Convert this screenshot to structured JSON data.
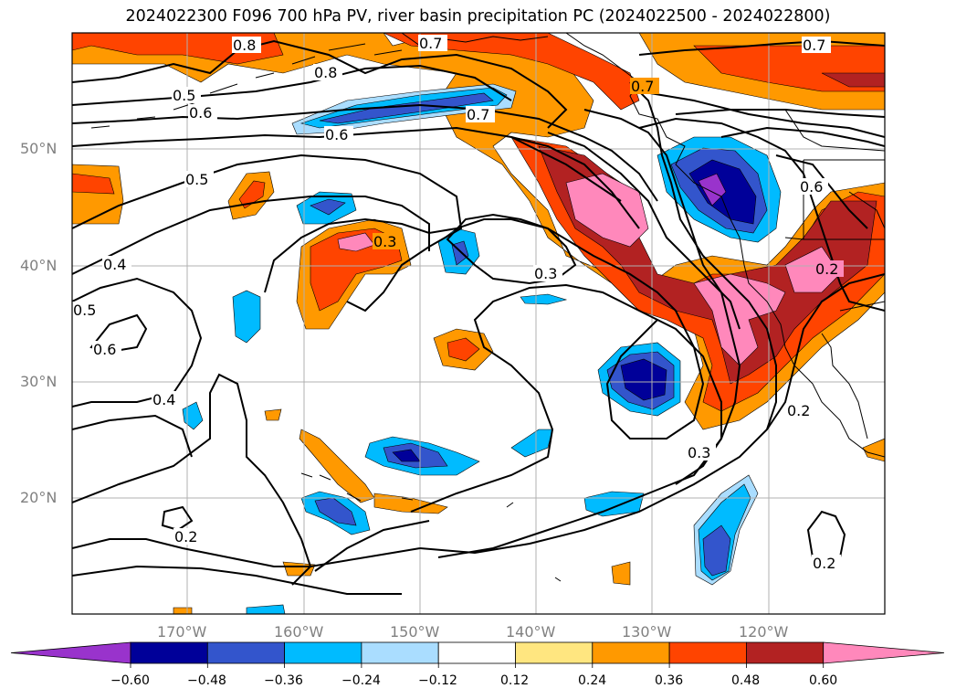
{
  "title": "2024022300 F096 700 hPa PV, river basin precipitation PC (2024022500 - 2024022800)",
  "lat_ticks": [
    "50°N",
    "40°N",
    "30°N",
    "20°N"
  ],
  "lon_ticks": [
    "170°W",
    "160°W",
    "150°W",
    "140°W",
    "130°W",
    "120°W"
  ],
  "colorbar": {
    "levels": [
      "−0.60",
      "−0.48",
      "−0.36",
      "−0.24",
      "−0.12",
      "0.12",
      "0.24",
      "0.36",
      "0.48",
      "0.60"
    ],
    "colors": [
      "#9933cc",
      "#000099",
      "#3355cc",
      "#00bbff",
      "#aaddff",
      "#ffffff",
      "#ffe680",
      "#ff9900",
      "#ff4400",
      "#b22222",
      "#ff88bb"
    ]
  },
  "contour_labels": [
    {
      "text": "0.8"
    },
    {
      "text": "0.7"
    },
    {
      "text": "0.8"
    },
    {
      "text": "0.5"
    },
    {
      "text": "0.6"
    },
    {
      "text": "0.7"
    },
    {
      "text": "0.6"
    },
    {
      "text": "0.5"
    },
    {
      "text": "0.3"
    },
    {
      "text": "0.3"
    },
    {
      "text": "0.4"
    },
    {
      "text": "0.5"
    },
    {
      "text": "0.6"
    },
    {
      "text": "0.4"
    },
    {
      "text": "0.2"
    },
    {
      "text": "0.3"
    },
    {
      "text": "0.2"
    },
    {
      "text": "0.2"
    },
    {
      "text": "0.7"
    },
    {
      "text": "0.7"
    },
    {
      "text": "0.2"
    },
    {
      "text": "0.6"
    }
  ]
}
